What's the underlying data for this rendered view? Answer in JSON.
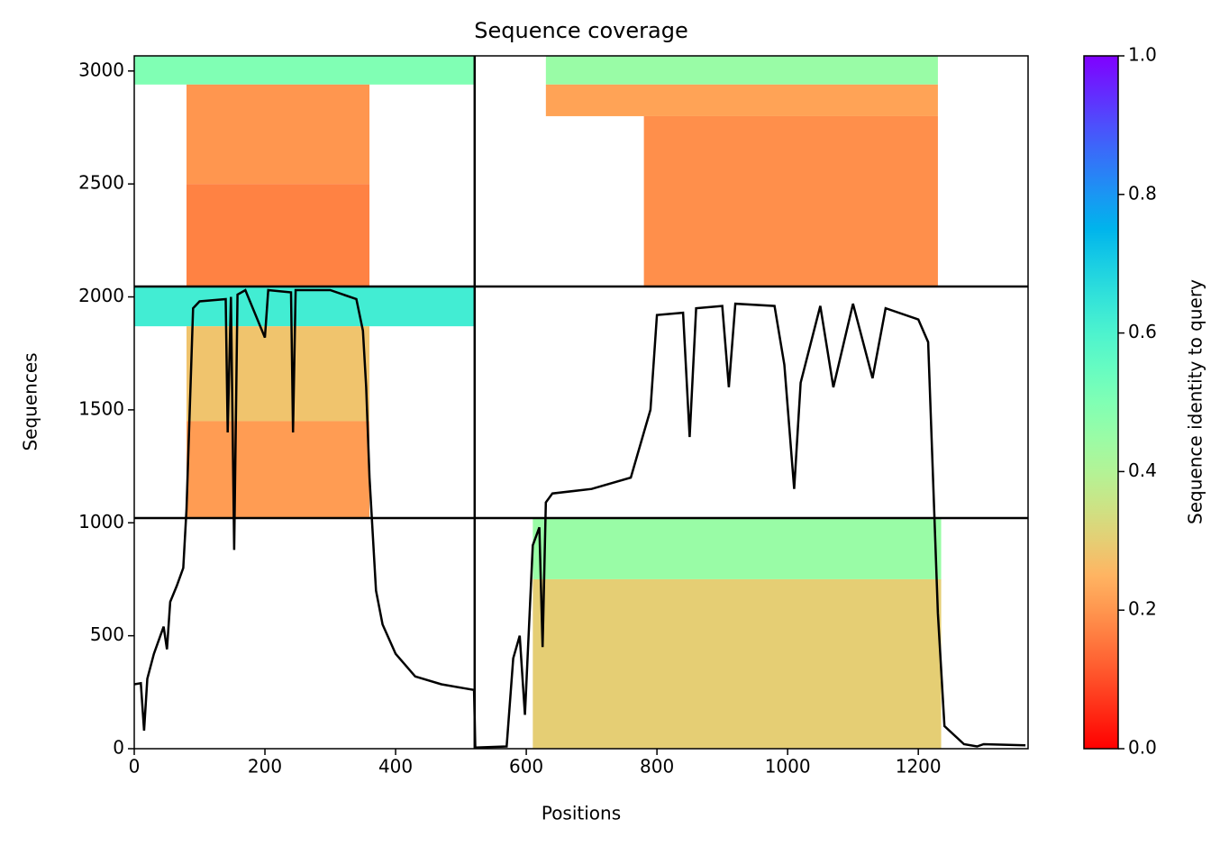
{
  "chart_data": {
    "type": "coverage",
    "title": "Sequence coverage",
    "xlabel": "Positions",
    "ylabel": "Sequences",
    "colorbar_label": "Sequence identity to query",
    "xlim": [
      0,
      1368
    ],
    "ylim": [
      0,
      3067
    ],
    "xticks": [
      0,
      200,
      400,
      600,
      800,
      1000,
      1200
    ],
    "yticks": [
      0,
      500,
      1000,
      1500,
      2000,
      2500,
      3000
    ],
    "clim": [
      0,
      1
    ],
    "cticks": [
      {
        "value": 0,
        "label": "0.0"
      },
      0.2,
      0.4,
      0.6,
      0.8,
      {
        "value": 1,
        "label": "1.0"
      }
    ],
    "x_breaks": [
      521
    ],
    "y_breaks": [
      1021,
      2046
    ],
    "blocks": [
      {
        "x": [
          0,
          521
        ],
        "y": [
          2940,
          3067
        ],
        "identity": 0.5
      },
      {
        "x": [
          80,
          360
        ],
        "y": [
          2500,
          2940
        ],
        "identity": 0.2
      },
      {
        "x": [
          80,
          360
        ],
        "y": [
          2046,
          2500
        ],
        "identity": 0.17
      },
      {
        "x": [
          0,
          521
        ],
        "y": [
          1870,
          2046
        ],
        "identity": 0.62
      },
      {
        "x": [
          80,
          360
        ],
        "y": [
          1450,
          1870
        ],
        "identity": 0.28
      },
      {
        "x": [
          80,
          360
        ],
        "y": [
          1021,
          1450
        ],
        "identity": 0.21
      },
      {
        "x": [
          630,
          1230
        ],
        "y": [
          2940,
          3067
        ],
        "identity": 0.45
      },
      {
        "x": [
          630,
          1230
        ],
        "y": [
          2800,
          2940
        ],
        "identity": 0.22
      },
      {
        "x": [
          780,
          1230
        ],
        "y": [
          2046,
          2800
        ],
        "identity": 0.19
      },
      {
        "x": [
          610,
          1235
        ],
        "y": [
          750,
          1021
        ],
        "identity": 0.45
      },
      {
        "x": [
          610,
          1235
        ],
        "y": [
          0,
          750
        ],
        "identity": 0.3
      }
    ],
    "coverage": {
      "color": "#000000",
      "x": [
        0,
        10,
        15,
        20,
        30,
        40,
        45,
        50,
        55,
        65,
        75,
        80,
        85,
        90,
        100,
        140,
        143,
        148,
        153,
        158,
        170,
        200,
        205,
        240,
        243,
        247,
        300,
        340,
        350,
        355,
        360,
        370,
        380,
        400,
        430,
        470,
        500,
        520,
        522,
        570,
        580,
        590,
        598,
        610,
        620,
        625,
        630,
        640,
        700,
        760,
        780,
        790,
        800,
        840,
        850,
        860,
        900,
        910,
        920,
        980,
        995,
        1010,
        1020,
        1050,
        1070,
        1100,
        1130,
        1150,
        1200,
        1215,
        1225,
        1230,
        1240,
        1270,
        1290,
        1300,
        1364
      ],
      "values": [
        285,
        290,
        80,
        310,
        420,
        500,
        540,
        440,
        650,
        720,
        800,
        1060,
        1500,
        1950,
        1980,
        1990,
        1400,
        2000,
        880,
        2010,
        2030,
        1820,
        2030,
        2020,
        1400,
        2030,
        2030,
        1990,
        1850,
        1600,
        1200,
        700,
        550,
        420,
        320,
        285,
        270,
        260,
        5,
        10,
        400,
        500,
        150,
        900,
        980,
        450,
        1090,
        1130,
        1150,
        1200,
        1400,
        1500,
        1920,
        1930,
        1380,
        1950,
        1960,
        1600,
        1970,
        1960,
        1700,
        1150,
        1620,
        1960,
        1600,
        1970,
        1640,
        1950,
        1900,
        1800,
        1000,
        600,
        100,
        20,
        10,
        20,
        15
      ]
    }
  }
}
